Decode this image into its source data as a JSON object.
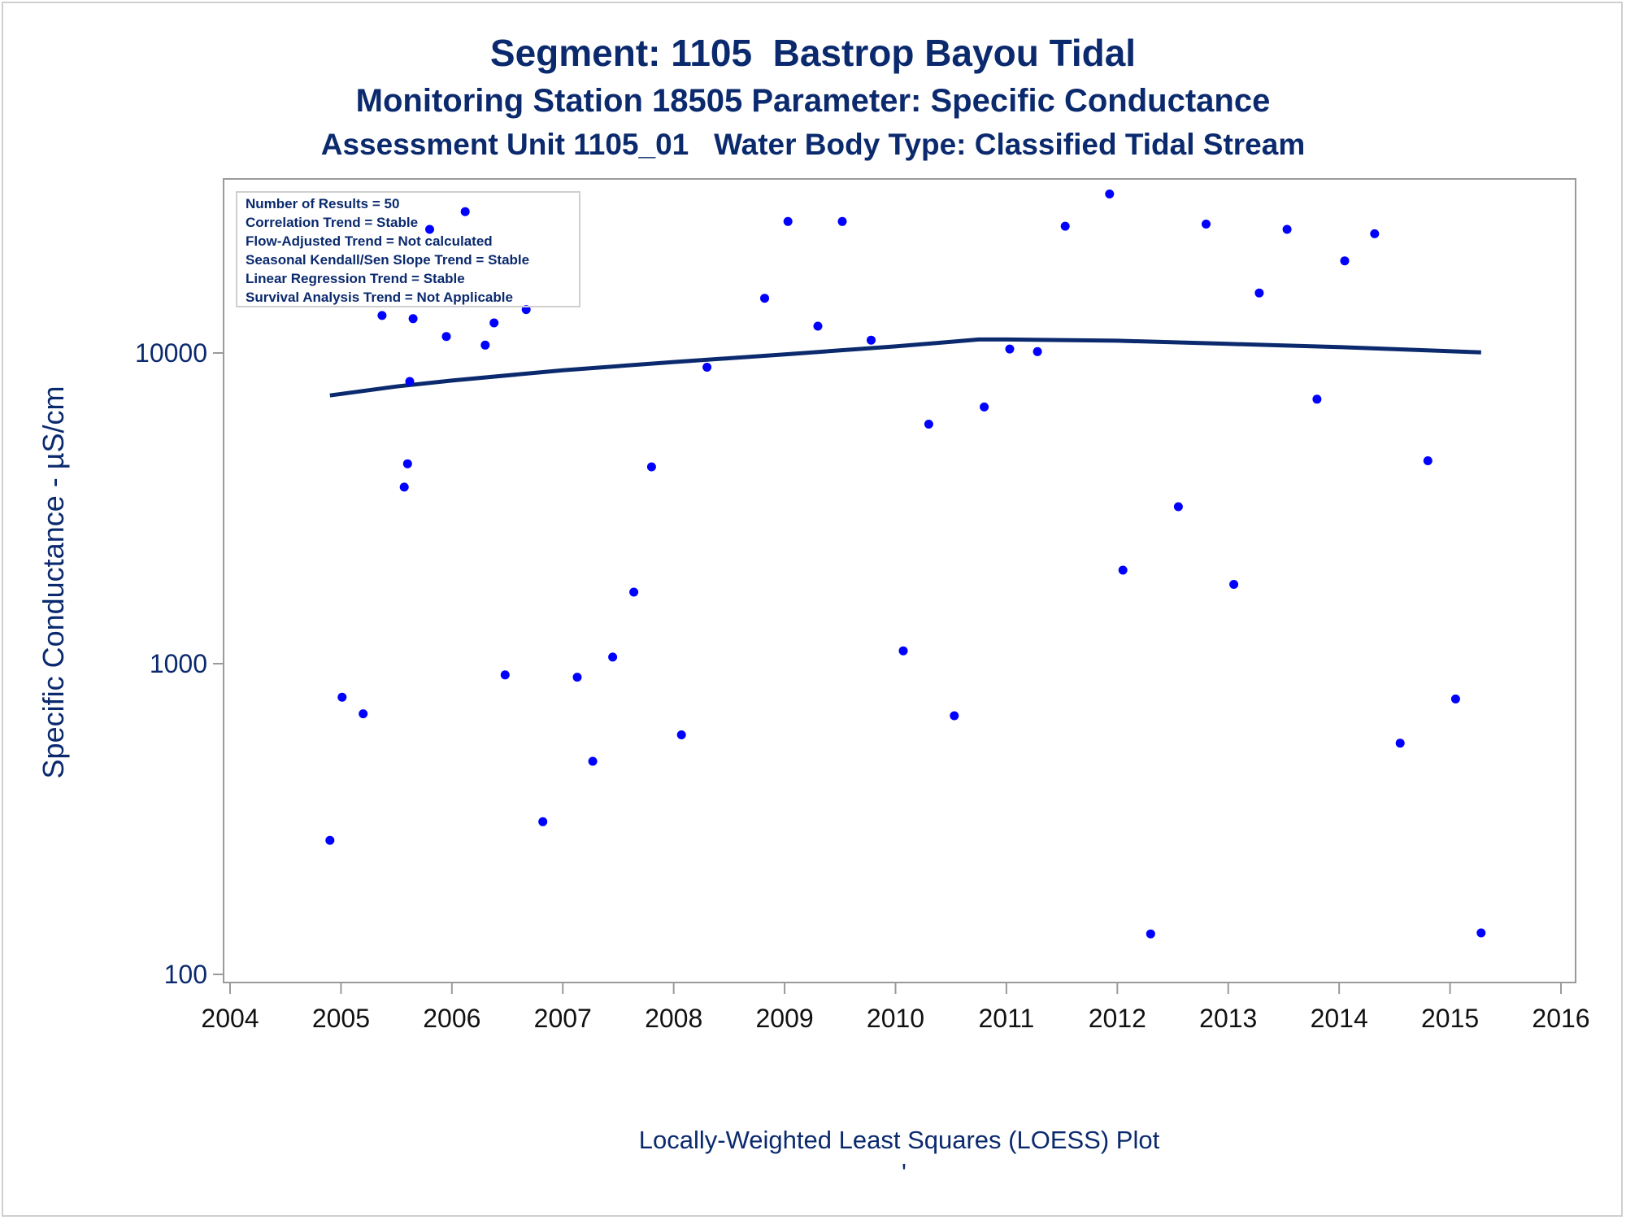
{
  "chart_data": {
    "type": "scatter",
    "title": "Segment: 1105  Bastrop Bayou Tidal",
    "subtitle": "Monitoring Station 18505 Parameter: Specific Conductance",
    "subtitle2": "Assessment Unit 1105_01   Water Body Type: Classified Tidal Stream",
    "ylabel": "Specific Conductance -  µS/cm",
    "xlabel": "",
    "footnote": "Locally-Weighted Least Squares (LOESS) Plot",
    "footnote_mark": "'",
    "y_scale": "log",
    "ylim": [
      95,
      45000
    ],
    "xlim": [
      2004,
      2016
    ],
    "y_ticks": [
      100,
      1000,
      10000
    ],
    "y_tick_labels": [
      "100",
      "1000",
      "10000"
    ],
    "x_ticks": [
      2004,
      2005,
      2006,
      2007,
      2008,
      2009,
      2010,
      2011,
      2012,
      2013,
      2014,
      2015,
      2016
    ],
    "x_tick_labels": [
      "2004",
      "2005",
      "2006",
      "2007",
      "2008",
      "2009",
      "2010",
      "2011",
      "2012",
      "2013",
      "2014",
      "2015",
      "2016"
    ],
    "grid": false,
    "colors": {
      "points": "#0000ff",
      "line": "#0b2a6e",
      "text": "#0b2a6e"
    },
    "stats_box": [
      "Number of Results = 50",
      "Correlation Trend = Stable",
      "Flow-Adjusted Trend = Not calculated",
      "Seasonal Kendall/Sen Slope Trend = Stable",
      "Linear Regression Trend = Stable",
      "Survival Analysis Trend = Not Applicable"
    ],
    "stats_box_placement": "top-left",
    "series": [
      {
        "type": "scatter",
        "points": [
          {
            "x": 2004.9,
            "y": 270
          },
          {
            "x": 2005.01,
            "y": 780
          },
          {
            "x": 2005.2,
            "y": 690
          },
          {
            "x": 2005.37,
            "y": 13200
          },
          {
            "x": 2005.57,
            "y": 3700
          },
          {
            "x": 2005.6,
            "y": 4400
          },
          {
            "x": 2005.62,
            "y": 8100
          },
          {
            "x": 2005.65,
            "y": 12900
          },
          {
            "x": 2005.8,
            "y": 25000
          },
          {
            "x": 2005.95,
            "y": 11300
          },
          {
            "x": 2006.12,
            "y": 28500
          },
          {
            "x": 2006.3,
            "y": 10600
          },
          {
            "x": 2006.38,
            "y": 12500
          },
          {
            "x": 2006.48,
            "y": 920
          },
          {
            "x": 2006.67,
            "y": 13800
          },
          {
            "x": 2006.82,
            "y": 310
          },
          {
            "x": 2007.13,
            "y": 905
          },
          {
            "x": 2007.27,
            "y": 485
          },
          {
            "x": 2007.45,
            "y": 1050
          },
          {
            "x": 2007.64,
            "y": 1700
          },
          {
            "x": 2007.8,
            "y": 4300
          },
          {
            "x": 2008.07,
            "y": 590
          },
          {
            "x": 2008.3,
            "y": 9000
          },
          {
            "x": 2008.82,
            "y": 15000
          },
          {
            "x": 2009.03,
            "y": 26500
          },
          {
            "x": 2009.3,
            "y": 12200
          },
          {
            "x": 2009.52,
            "y": 26500
          },
          {
            "x": 2009.78,
            "y": 11000
          },
          {
            "x": 2010.07,
            "y": 1100
          },
          {
            "x": 2010.3,
            "y": 5900
          },
          {
            "x": 2010.53,
            "y": 680
          },
          {
            "x": 2010.8,
            "y": 6700
          },
          {
            "x": 2011.03,
            "y": 10300
          },
          {
            "x": 2011.28,
            "y": 10100
          },
          {
            "x": 2011.53,
            "y": 25600
          },
          {
            "x": 2011.93,
            "y": 32500
          },
          {
            "x": 2012.05,
            "y": 2000
          },
          {
            "x": 2012.3,
            "y": 135
          },
          {
            "x": 2012.55,
            "y": 3200
          },
          {
            "x": 2012.8,
            "y": 26000
          },
          {
            "x": 2013.05,
            "y": 1800
          },
          {
            "x": 2013.28,
            "y": 15600
          },
          {
            "x": 2013.53,
            "y": 25000
          },
          {
            "x": 2013.8,
            "y": 7100
          },
          {
            "x": 2014.05,
            "y": 19800
          },
          {
            "x": 2014.32,
            "y": 24200
          },
          {
            "x": 2014.55,
            "y": 555
          },
          {
            "x": 2014.8,
            "y": 4500
          },
          {
            "x": 2015.05,
            "y": 770
          },
          {
            "x": 2015.28,
            "y": 136
          }
        ]
      },
      {
        "type": "line",
        "points": [
          {
            "x": 2004.9,
            "y": 7300
          },
          {
            "x": 2005.5,
            "y": 7800
          },
          {
            "x": 2006.0,
            "y": 8150
          },
          {
            "x": 2007.0,
            "y": 8800
          },
          {
            "x": 2008.0,
            "y": 9350
          },
          {
            "x": 2009.0,
            "y": 9900
          },
          {
            "x": 2010.0,
            "y": 10500
          },
          {
            "x": 2010.75,
            "y": 11050
          },
          {
            "x": 2011.0,
            "y": 11050
          },
          {
            "x": 2012.0,
            "y": 10950
          },
          {
            "x": 2013.0,
            "y": 10700
          },
          {
            "x": 2014.0,
            "y": 10450
          },
          {
            "x": 2015.28,
            "y": 10050
          }
        ]
      }
    ]
  }
}
